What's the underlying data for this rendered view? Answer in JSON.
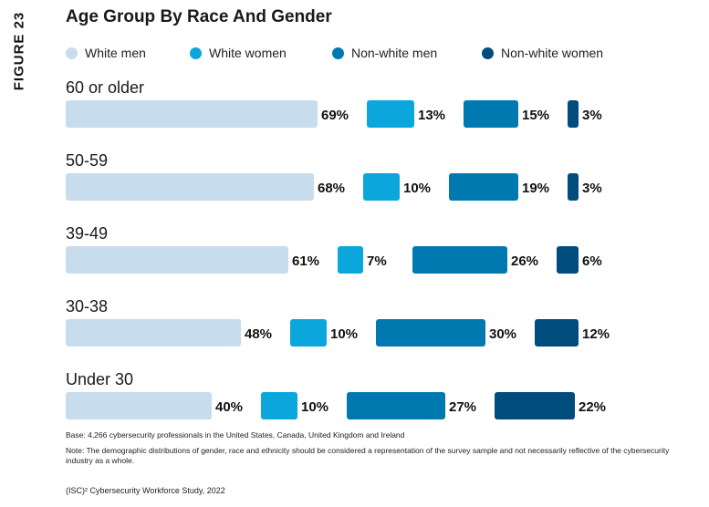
{
  "figure_label": "FIGURE 23",
  "chart_data": {
    "type": "bar",
    "title": "Age Group By Race And Gender",
    "categories": [
      "60 or older",
      "50-59",
      "39-49",
      "30-38",
      "Under 30"
    ],
    "series": [
      {
        "name": "White men",
        "values": [
          69,
          68,
          61,
          48,
          40
        ],
        "color": "#c7dcec"
      },
      {
        "name": "White women",
        "values": [
          13,
          10,
          7,
          10,
          10
        ],
        "color": "#0aa6dc"
      },
      {
        "name": "Non-white men",
        "values": [
          15,
          19,
          26,
          30,
          27
        ],
        "color": "#0079b0"
      },
      {
        "name": "Non-white women",
        "values": [
          3,
          3,
          6,
          12,
          22
        ],
        "color": "#004c7d"
      }
    ],
    "value_suffix": "%",
    "grid": false,
    "legend_position": "top"
  },
  "notes": {
    "base": "Base: 4,266 cybersecurity professionals in the United States, Canada, United Kingdom and Ireland",
    "demographic": "Note: The demographic distributions of gender, race and ethnicity should be considered a representation of the survey sample and not necessarily reflective of the cybersecurity industry as a whole.",
    "source": "(ISC)² Cybersecurity Workforce Study, 2022"
  }
}
